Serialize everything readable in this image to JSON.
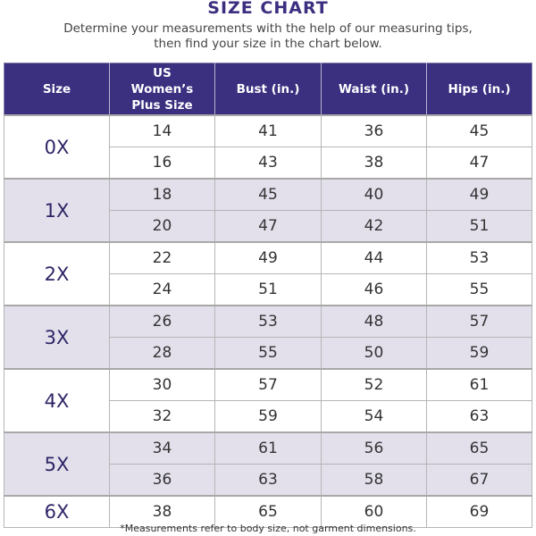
{
  "title": "SIZE CHART",
  "subtitle_line1": "Determine your measurements with the help of our measuring tips,",
  "subtitle_line2": "then find your size in the chart below.",
  "colors": {
    "header_bg": "#3b2f80",
    "alt_row_bg": "#e3e0ec",
    "size_text": "#2d2566"
  },
  "table": {
    "headers": [
      "Size",
      "US Women’s Plus Size",
      "Bust (in.)",
      "Waist (in.)",
      "Hips (in.)"
    ],
    "groups": [
      {
        "size": "0X",
        "rows": [
          [
            "14",
            "41",
            "36",
            "45"
          ],
          [
            "16",
            "43",
            "38",
            "47"
          ]
        ]
      },
      {
        "size": "1X",
        "rows": [
          [
            "18",
            "45",
            "40",
            "49"
          ],
          [
            "20",
            "47",
            "42",
            "51"
          ]
        ]
      },
      {
        "size": "2X",
        "rows": [
          [
            "22",
            "49",
            "44",
            "53"
          ],
          [
            "24",
            "51",
            "46",
            "55"
          ]
        ]
      },
      {
        "size": "3X",
        "rows": [
          [
            "26",
            "53",
            "48",
            "57"
          ],
          [
            "28",
            "55",
            "50",
            "59"
          ]
        ]
      },
      {
        "size": "4X",
        "rows": [
          [
            "30",
            "57",
            "52",
            "61"
          ],
          [
            "32",
            "59",
            "54",
            "63"
          ]
        ]
      },
      {
        "size": "5X",
        "rows": [
          [
            "34",
            "61",
            "56",
            "65"
          ],
          [
            "36",
            "63",
            "58",
            "67"
          ]
        ]
      },
      {
        "size": "6X",
        "rows": [
          [
            "38",
            "65",
            "60",
            "69"
          ]
        ]
      }
    ]
  },
  "footnote": "*Measurements refer to body size, not garment dimensions."
}
